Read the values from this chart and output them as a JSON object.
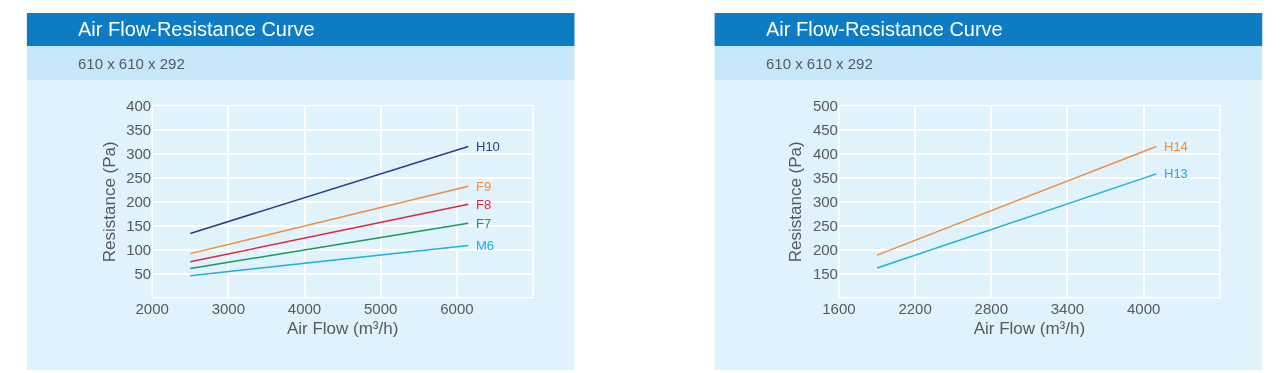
{
  "chart_data": [
    {
      "type": "line",
      "title": "Air Flow-Resistance Curve",
      "subtitle": "610 x 610 x 292",
      "xlabel": "Air Flow (m³/h)",
      "ylabel": "Resistance (Pa)",
      "xlim": [
        2000,
        7000
      ],
      "xticks": [
        2000,
        3000,
        4000,
        5000,
        6000
      ],
      "ylim": [
        0,
        400
      ],
      "yticks": [
        50,
        100,
        150,
        200,
        250,
        300,
        350,
        400
      ],
      "grid": true,
      "series": [
        {
          "name": "H10",
          "color": "#2b3a8c",
          "x": [
            2500,
            6150
          ],
          "values": [
            134,
            315
          ]
        },
        {
          "name": "F9",
          "color": "#f08c3c",
          "x": [
            2500,
            6150
          ],
          "values": [
            92,
            232
          ]
        },
        {
          "name": "F8",
          "color": "#e0283c",
          "x": [
            2500,
            6150
          ],
          "values": [
            75,
            195
          ]
        },
        {
          "name": "F7",
          "color": "#1a9a5a",
          "x": [
            2500,
            6150
          ],
          "values": [
            61,
            155
          ]
        },
        {
          "name": "M6",
          "color": "#1ab0e0",
          "x": [
            2500,
            6150
          ],
          "values": [
            46,
            109
          ]
        }
      ]
    },
    {
      "type": "line",
      "title": "Air Flow-Resistance Curve",
      "subtitle": "610 x 610 x 292",
      "xlabel": "Air Flow (m³/h)",
      "ylabel": "Resistance (Pa)",
      "xlim": [
        1600,
        4600
      ],
      "xticks": [
        1600,
        2200,
        2800,
        3400,
        4000
      ],
      "ylim": [
        100,
        500
      ],
      "yticks": [
        150,
        200,
        250,
        300,
        350,
        400,
        450,
        500
      ],
      "grid": true,
      "series": [
        {
          "name": "H14",
          "color": "#f08c3c",
          "x": [
            1900,
            4100
          ],
          "values": [
            189,
            415
          ]
        },
        {
          "name": "H13",
          "color": "#1ab0e0",
          "x": [
            1900,
            4100
          ],
          "values": [
            162,
            358
          ]
        }
      ]
    }
  ]
}
